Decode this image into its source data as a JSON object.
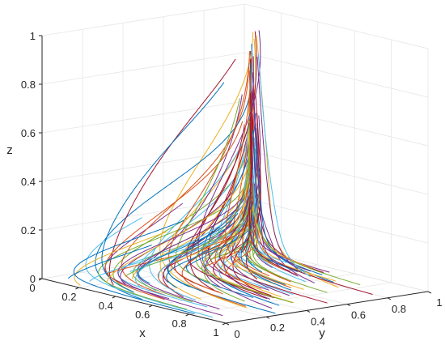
{
  "chart_data": {
    "type": "line",
    "projection": "3d",
    "title": "",
    "xlabel": "x",
    "ylabel": "y",
    "zlabel": "z",
    "xlim": [
      0,
      1
    ],
    "ylim": [
      0,
      1
    ],
    "zlim": [
      0,
      1
    ],
    "x_ticks": [
      "0",
      "0.2",
      "0.4",
      "0.6",
      "0.8",
      "1"
    ],
    "y_ticks": [
      "0",
      "0.2",
      "0.4",
      "0.6",
      "0.8",
      "1"
    ],
    "z_ticks": [
      "0",
      "0.2",
      "0.4",
      "0.6",
      "0.8",
      "1"
    ],
    "grid": true,
    "legend": "none",
    "convergence_point": {
      "x": 0,
      "y": 1,
      "z": 1
    },
    "trajectory_count": 120,
    "series_colors": [
      "#0072bd",
      "#d95319",
      "#edb120",
      "#7e2f8e",
      "#77ac30",
      "#4dbeee",
      "#a2142f"
    ]
  }
}
